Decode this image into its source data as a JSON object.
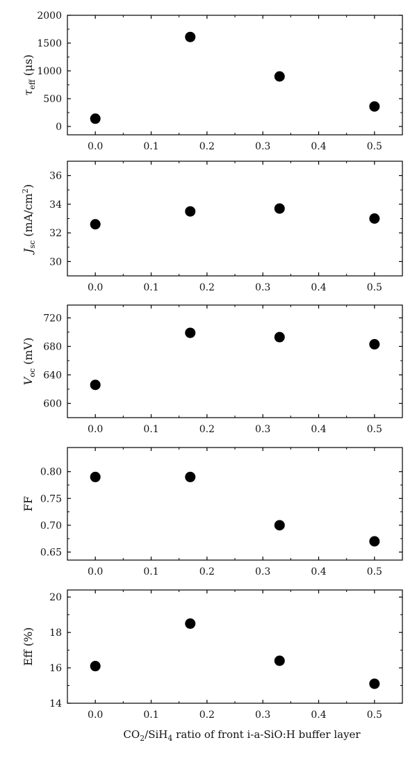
{
  "figure": {
    "xlabel_parts": {
      "main": "CO",
      "sub1": "2",
      "mid": "/SiH",
      "sub2": "4",
      "rest": " ratio of front i-a-SiO:H buffer layer"
    }
  },
  "chart_data": [
    {
      "type": "scatter",
      "ylabel_parts": {
        "sym": "τ",
        "sub": "eff",
        "rest": " (μs)"
      },
      "x": [
        0.0,
        0.17,
        0.33,
        0.5
      ],
      "values": [
        140,
        1610,
        900,
        360
      ],
      "xlim": [
        -0.05,
        0.55
      ],
      "ylim": [
        -150,
        2000
      ],
      "xticks": [
        0.0,
        0.1,
        0.2,
        0.3,
        0.4,
        0.5
      ],
      "xtick_labels": [
        "0.0",
        "0.1",
        "0.2",
        "0.3",
        "0.4",
        "0.5"
      ],
      "yticks": [
        0,
        500,
        1000,
        1500,
        2000
      ],
      "ytick_labels": [
        "0",
        "500",
        "1000",
        "1500",
        "2000"
      ],
      "marker_color": "#000000",
      "grid": false
    },
    {
      "type": "scatter",
      "ylabel_parts": {
        "sym": "J",
        "sub": "sc",
        "rest": " (mA/cm",
        "sup": "2",
        "close": ")"
      },
      "x": [
        0.0,
        0.17,
        0.33,
        0.5
      ],
      "values": [
        32.6,
        33.5,
        33.7,
        33.0
      ],
      "xlim": [
        -0.05,
        0.55
      ],
      "ylim": [
        29,
        37
      ],
      "xticks": [
        0.0,
        0.1,
        0.2,
        0.3,
        0.4,
        0.5
      ],
      "xtick_labels": [
        "0.0",
        "0.1",
        "0.2",
        "0.3",
        "0.4",
        "0.5"
      ],
      "yticks": [
        30,
        32,
        34,
        36
      ],
      "ytick_labels": [
        "30",
        "32",
        "34",
        "36"
      ],
      "marker_color": "#000000",
      "grid": false
    },
    {
      "type": "scatter",
      "ylabel_parts": {
        "sym": "V",
        "sub": "oc",
        "rest": " (mV)"
      },
      "x": [
        0.0,
        0.17,
        0.33,
        0.5
      ],
      "values": [
        626,
        699,
        693,
        683
      ],
      "xlim": [
        -0.05,
        0.55
      ],
      "ylim": [
        580,
        738
      ],
      "xticks": [
        0.0,
        0.1,
        0.2,
        0.3,
        0.4,
        0.5
      ],
      "xtick_labels": [
        "0.0",
        "0.1",
        "0.2",
        "0.3",
        "0.4",
        "0.5"
      ],
      "yticks": [
        600,
        640,
        680,
        720
      ],
      "ytick_labels": [
        "600",
        "640",
        "680",
        "720"
      ],
      "marker_color": "#000000",
      "grid": false
    },
    {
      "type": "scatter",
      "ylabel_parts": {
        "sym": "",
        "sub": "",
        "rest": "FF"
      },
      "x": [
        0.0,
        0.17,
        0.33,
        0.5
      ],
      "values": [
        0.79,
        0.79,
        0.7,
        0.67
      ],
      "xlim": [
        -0.05,
        0.55
      ],
      "ylim": [
        0.635,
        0.845
      ],
      "xticks": [
        0.0,
        0.1,
        0.2,
        0.3,
        0.4,
        0.5
      ],
      "xtick_labels": [
        "0.0",
        "0.1",
        "0.2",
        "0.3",
        "0.4",
        "0.5"
      ],
      "yticks": [
        0.65,
        0.7,
        0.75,
        0.8
      ],
      "ytick_labels": [
        "0.65",
        "0.70",
        "0.75",
        "0.80"
      ],
      "marker_color": "#000000",
      "grid": false
    },
    {
      "type": "scatter",
      "ylabel_parts": {
        "sym": "",
        "sub": "",
        "rest": "Eff (%)"
      },
      "x": [
        0.0,
        0.17,
        0.33,
        0.5
      ],
      "values": [
        16.1,
        18.5,
        16.4,
        15.1
      ],
      "xlim": [
        -0.05,
        0.55
      ],
      "ylim": [
        14,
        20.4
      ],
      "xticks": [
        0.0,
        0.1,
        0.2,
        0.3,
        0.4,
        0.5
      ],
      "xtick_labels": [
        "0.0",
        "0.1",
        "0.2",
        "0.3",
        "0.4",
        "0.5"
      ],
      "yticks": [
        14,
        16,
        18,
        20
      ],
      "ytick_labels": [
        "14",
        "16",
        "18",
        "20"
      ],
      "marker_color": "#000000",
      "grid": false
    }
  ]
}
